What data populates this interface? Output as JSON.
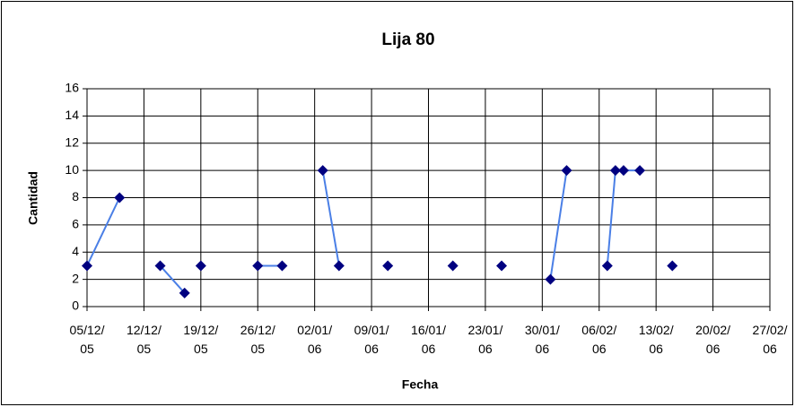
{
  "chart_data": {
    "type": "line",
    "title": "Lija 80",
    "x_label": "Fecha",
    "y_label": "Cantidad",
    "x": [
      "2005-12-05",
      "2005-12-09",
      null,
      "2005-12-14",
      "2005-12-17",
      null,
      "2005-12-19",
      null,
      "2005-12-26",
      "2005-12-29",
      null,
      "2006-01-03",
      "2006-01-05",
      null,
      "2006-01-11",
      null,
      "2006-01-19",
      null,
      "2006-01-25",
      null,
      "2006-01-31",
      "2006-02-02",
      null,
      "2006-02-07",
      "2006-02-08",
      "2006-02-09",
      "2006-02-11",
      null,
      "2006-02-15"
    ],
    "series": [
      {
        "name": "Lija 80",
        "color": "#4a7fe6",
        "marker_color": "#000080",
        "values": [
          3,
          8,
          null,
          3,
          1,
          null,
          3,
          null,
          3,
          3,
          null,
          10,
          3,
          null,
          3,
          null,
          3,
          null,
          3,
          null,
          2,
          10,
          null,
          3,
          10,
          10,
          10,
          null,
          3
        ]
      }
    ],
    "xlim": [
      "2005-12-05",
      "2006-02-27"
    ],
    "xticks": [
      {
        "value": "2005-12-05",
        "label": "05/12/ 05"
      },
      {
        "value": "2005-12-12",
        "label": "12/12/ 05"
      },
      {
        "value": "2005-12-19",
        "label": "19/12/ 05"
      },
      {
        "value": "2005-12-26",
        "label": "26/12/ 05"
      },
      {
        "value": "2006-01-02",
        "label": "02/01/ 06"
      },
      {
        "value": "2006-01-09",
        "label": "09/01/ 06"
      },
      {
        "value": "2006-01-16",
        "label": "16/01/ 06"
      },
      {
        "value": "2006-01-23",
        "label": "23/01/ 06"
      },
      {
        "value": "2006-01-30",
        "label": "30/01/ 06"
      },
      {
        "value": "2006-02-06",
        "label": "06/02/ 06"
      },
      {
        "value": "2006-02-13",
        "label": "13/02/ 06"
      },
      {
        "value": "2006-02-20",
        "label": "20/02/ 06"
      },
      {
        "value": "2006-02-27",
        "label": "27/02/ 06"
      }
    ],
    "ylim": [
      0,
      16
    ],
    "yticks": [
      0,
      2,
      4,
      6,
      8,
      10,
      12,
      14,
      16
    ],
    "grid": true
  }
}
